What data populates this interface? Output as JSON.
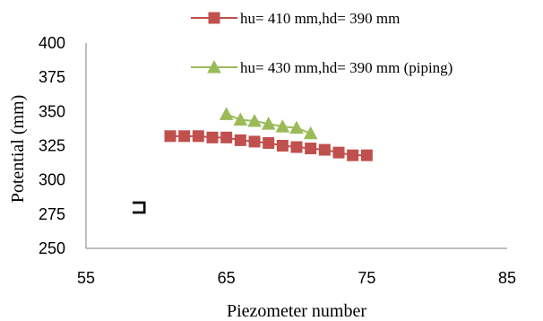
{
  "chart_data": {
    "type": "scatter",
    "title": "",
    "xlabel": "Piezometer number",
    "ylabel": "Potential (mm)",
    "xlim": [
      55,
      85
    ],
    "ylim": [
      250,
      400
    ],
    "xticks": [
      "55",
      "65",
      "75",
      "85"
    ],
    "yticks": [
      "250",
      "275",
      "300",
      "325",
      "350",
      "375",
      "400"
    ],
    "grid": false,
    "legend_position": "top-right",
    "stray_mark": "⊐",
    "series": [
      {
        "name": "hu= 410 mm,hd= 390 mm",
        "color": "#c0504d",
        "marker": "square",
        "x": [
          61,
          62,
          63,
          64,
          65,
          66,
          67,
          68,
          69,
          70,
          71,
          72,
          73,
          74,
          75
        ],
        "y": [
          332,
          332,
          332,
          331,
          331,
          329,
          328,
          327,
          325,
          324,
          323,
          322,
          320,
          318,
          318
        ]
      },
      {
        "name": "hu= 430 mm,hd= 390 mm (piping)",
        "color": "#9bbb59",
        "marker": "triangle",
        "x": [
          65,
          66,
          67,
          68,
          69,
          70,
          71
        ],
        "y": [
          348,
          344,
          343,
          341,
          339,
          338,
          334
        ]
      }
    ]
  }
}
